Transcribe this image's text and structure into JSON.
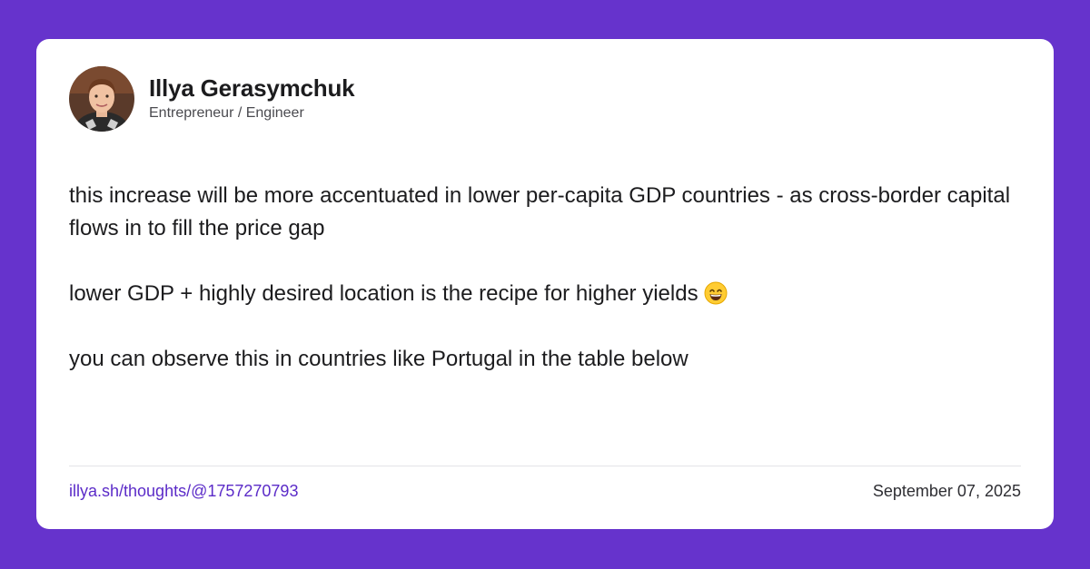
{
  "author": {
    "name": "Illya Gerasymchuk",
    "role": "Entrepreneur / Engineer",
    "avatar_icon": "avatar-photo"
  },
  "post": {
    "paragraph_1": "this increase will be more accentuated in lower per-capita GDP countries - as cross-border capital flows in to fill the price gap",
    "paragraph_2": "lower GDP + highly desired location is the recipe for higher yields",
    "paragraph_2_emoji": "grinning-face-with-smiling-eyes-icon",
    "paragraph_3": "you can observe this in countries like Portugal in the table below"
  },
  "footer": {
    "link_text": "illya.sh/thoughts/@1757270793",
    "date": "September 07, 2025"
  },
  "colors": {
    "background": "#6633cc",
    "card": "#ffffff",
    "link": "#5b2bc8",
    "text": "#1c1c1e"
  }
}
